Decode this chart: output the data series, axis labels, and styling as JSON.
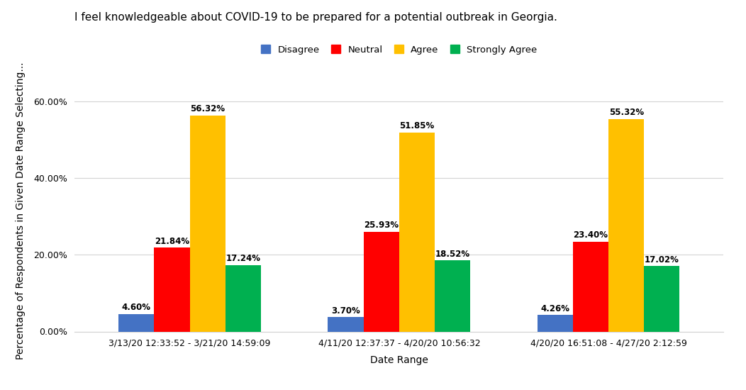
{
  "title": "I feel knowledgeable about COVID-19 to be prepared for a potential outbreak in Georgia.",
  "xlabel": "Date Range",
  "ylabel": "Percentage of Respondents in Given Date Range Selecting...",
  "ylim": [
    0,
    0.63
  ],
  "yticks": [
    0.0,
    0.2,
    0.4,
    0.6
  ],
  "ytick_labels": [
    "0.00%",
    "20.00%",
    "40.00%",
    "60.00%"
  ],
  "categories": [
    "3/13/20 12:33:52 - 3/21/20 14:59:09",
    "4/11/20 12:37:37 - 4/20/20 10:56:32",
    "4/20/20 16:51:08 - 4/27/20 2:12:59"
  ],
  "series": {
    "Disagree": [
      0.046,
      0.037,
      0.0426
    ],
    "Neutral": [
      0.2184,
      0.2593,
      0.234
    ],
    "Agree": [
      0.5632,
      0.5185,
      0.5532
    ],
    "Strongly Agree": [
      0.1724,
      0.1852,
      0.1702
    ]
  },
  "colors": {
    "Disagree": "#4472C4",
    "Neutral": "#FF0000",
    "Agree": "#FFC000",
    "Strongly Agree": "#00B050"
  },
  "bar_labels": {
    "Disagree": [
      "4.60%",
      "3.70%",
      "4.26%"
    ],
    "Neutral": [
      "21.84%",
      "25.93%",
      "23.40%"
    ],
    "Agree": [
      "56.32%",
      "51.85%",
      "55.32%"
    ],
    "Strongly Agree": [
      "17.24%",
      "18.52%",
      "17.02%"
    ]
  },
  "legend_labels": [
    "Disagree",
    "Neutral",
    "Agree",
    "Strongly Agree"
  ],
  "legend_colors": [
    "#4472C4",
    "#FF0000",
    "#FFC000",
    "#00B050"
  ],
  "background_color": "#FFFFFF",
  "bar_width": 0.17,
  "title_fontsize": 11,
  "label_fontsize": 10,
  "tick_fontsize": 9,
  "bar_label_fontsize": 8.5
}
